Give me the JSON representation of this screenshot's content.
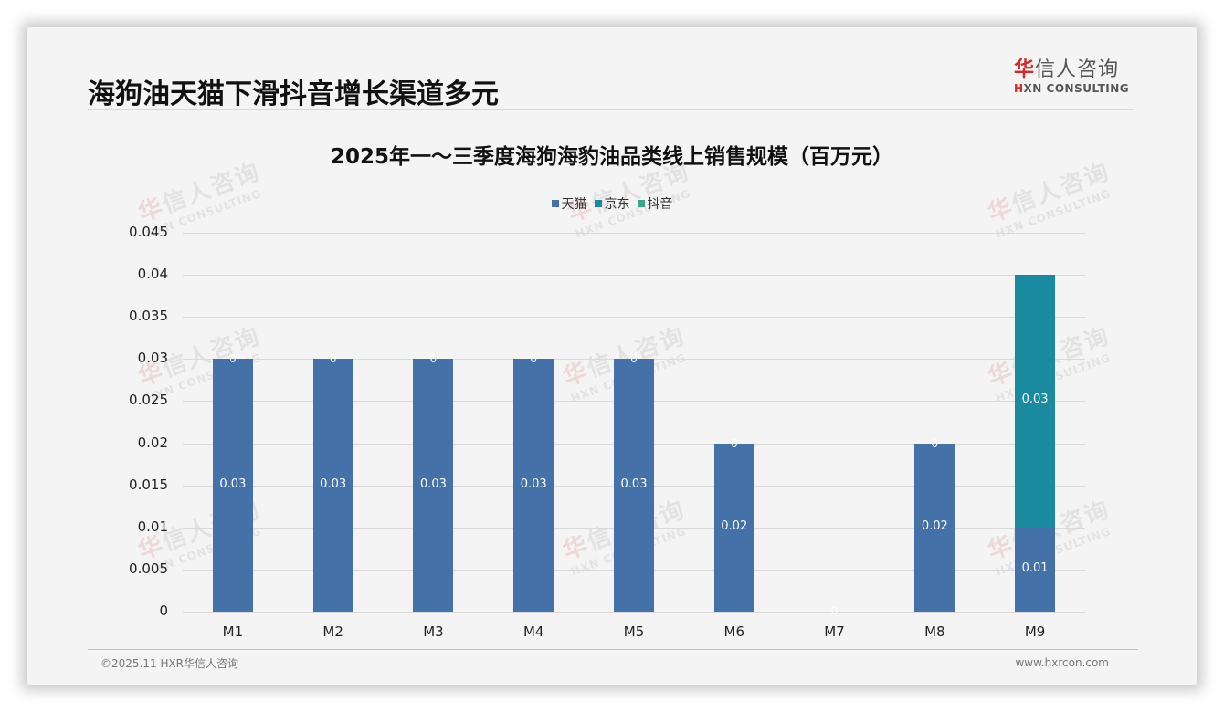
{
  "slide": {
    "title": "海狗油天猫下滑抖音增长渠道多元",
    "logo": {
      "cn_first": "华",
      "cn_rest": "信人咨询",
      "en_first": "H",
      "en_rest": "XN CONSULTING"
    },
    "footer": {
      "copyright": "©2025.11 HXR华信人咨询",
      "website": "www.hxrcon.com"
    },
    "watermark": {
      "cn_first": "华",
      "cn_rest": "信人咨询",
      "en": "HXN CONSULTING"
    }
  },
  "colors": {
    "tmall": "#4472a8",
    "jd": "#1a8aa0",
    "douyin": "#3aa68f",
    "background": "#f4f4f4"
  },
  "chart_data": {
    "type": "bar",
    "stacked": true,
    "title": "2025年一～三季度海狗海豹油品类线上销售规模（百万元）",
    "xlabel": "",
    "ylabel": "",
    "categories": [
      "M1",
      "M2",
      "M3",
      "M4",
      "M5",
      "M6",
      "M7",
      "M8",
      "M9"
    ],
    "series": [
      {
        "name": "天猫",
        "values": [
          0.03,
          0.03,
          0.03,
          0.03,
          0.03,
          0.02,
          0,
          0.02,
          0.01
        ]
      },
      {
        "name": "京东",
        "values": [
          0,
          0,
          0,
          0,
          0,
          0,
          0,
          0,
          0.03
        ]
      },
      {
        "name": "抖音",
        "values": [
          0,
          0,
          0,
          0,
          0,
          0,
          0,
          0,
          0
        ]
      }
    ],
    "data_labels": {
      "天猫": [
        "0.03",
        "0.03",
        "0.03",
        "0.03",
        "0.03",
        "0.02",
        "0",
        "0.02",
        "0.01"
      ],
      "京东": [
        "0",
        "0",
        "0",
        "0",
        "0",
        "0",
        "",
        "0",
        "0.03"
      ]
    },
    "ylim": [
      0,
      0.045
    ],
    "yticks": [
      "0",
      "0.005",
      "0.01",
      "0.015",
      "0.02",
      "0.025",
      "0.03",
      "0.035",
      "0.04",
      "0.045"
    ],
    "grid": true,
    "legend_position": "top"
  }
}
